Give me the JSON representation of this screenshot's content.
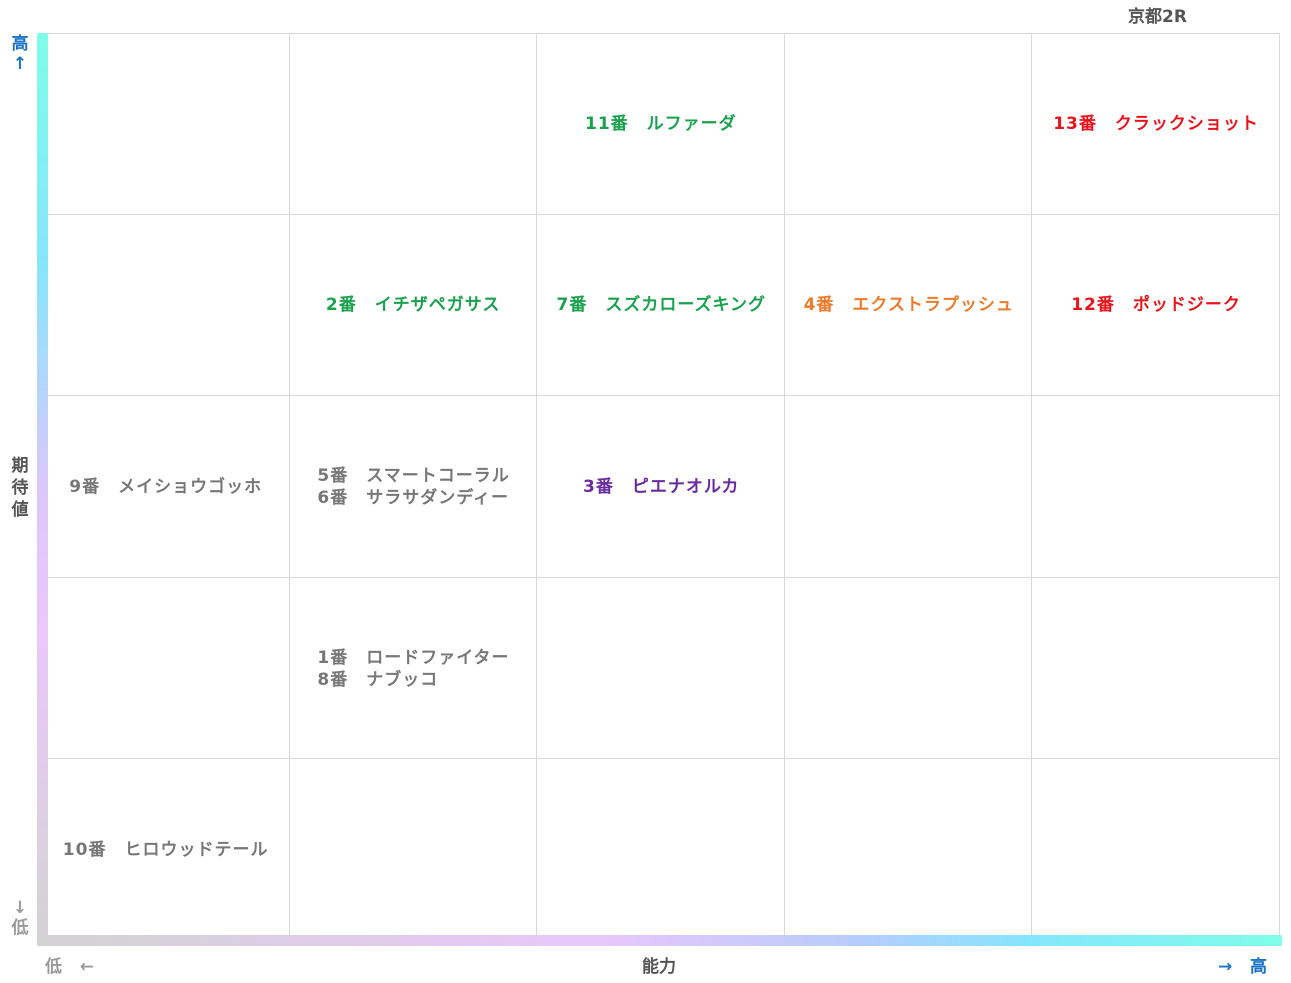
{
  "chart_data": {
    "type": "table",
    "title": "京都2R",
    "xlabel": "能力",
    "ylabel": "期待値",
    "x_axis": {
      "low_label": "低",
      "high_label": "高",
      "low_arrow": "←",
      "high_arrow": "→"
    },
    "y_axis": {
      "high_label": "高",
      "low_label": "低",
      "high_arrow": "↑",
      "low_arrow": "↓"
    },
    "columns": 5,
    "rows": 5,
    "colors": {
      "green": "#1aa14e",
      "red": "#e8141c",
      "orange": "#ec7b2a",
      "purple": "#6a2b9f",
      "gray": "#777777"
    },
    "cells": [
      {
        "col": 3,
        "row": 1,
        "text": "11番　ルファーダ",
        "color": "#1aa14e"
      },
      {
        "col": 5,
        "row": 1,
        "text": "13番　クラックショット",
        "color": "#e8141c"
      },
      {
        "col": 2,
        "row": 2,
        "text": "2番　イチザペガサス",
        "color": "#1aa14e"
      },
      {
        "col": 3,
        "row": 2,
        "text": "7番　スズカローズキング",
        "color": "#1aa14e"
      },
      {
        "col": 4,
        "row": 2,
        "text": "4番　エクストラプッシュ",
        "color": "#ec7b2a"
      },
      {
        "col": 5,
        "row": 2,
        "text": "12番　ポッドジーク",
        "color": "#e8141c"
      },
      {
        "col": 1,
        "row": 3,
        "text": "9番　メイショウゴッホ",
        "color": "#777777"
      },
      {
        "col": 2,
        "row": 3,
        "text": "5番　スマートコーラル\n6番　サラサダンディー",
        "color": "#777777"
      },
      {
        "col": 3,
        "row": 3,
        "text": "3番　ピエナオルカ",
        "color": "#6a2b9f"
      },
      {
        "col": 2,
        "row": 4,
        "text": "1番　ロードファイター\n8番　ナブッコ",
        "color": "#777777"
      },
      {
        "col": 1,
        "row": 5,
        "text": "10番　ヒロウッドテール",
        "color": "#777777"
      }
    ]
  }
}
